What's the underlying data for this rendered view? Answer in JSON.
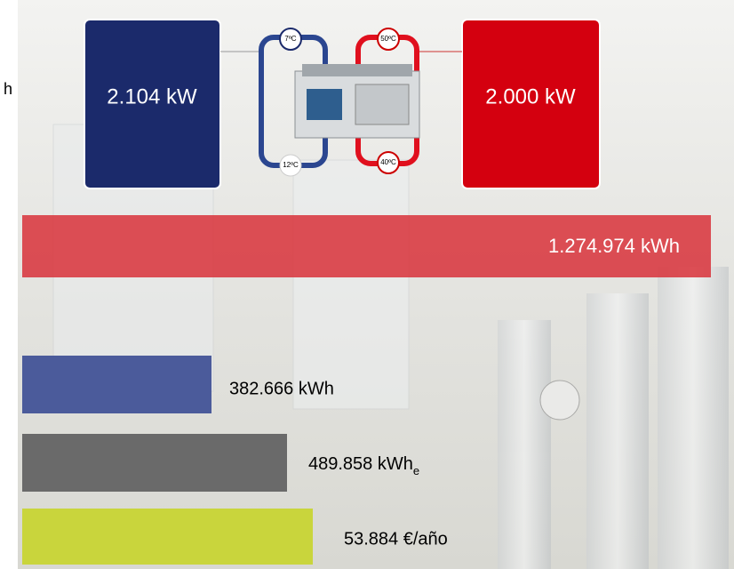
{
  "fragment": "h",
  "chiller": {
    "cold_power": "2.104 kW",
    "hot_power": "2.000 kW",
    "temps": {
      "cold_supply": "7ºC",
      "cold_return": "12ºC",
      "hot_supply": "50ºC",
      "hot_return": "40ºC"
    }
  },
  "bars": [
    {
      "label": "1.274.974 kWh"
    },
    {
      "label": "382.666 kWh"
    },
    {
      "label": "489.858 kWh",
      "subscript": "e"
    },
    {
      "label": "53.884 €/año"
    }
  ]
}
